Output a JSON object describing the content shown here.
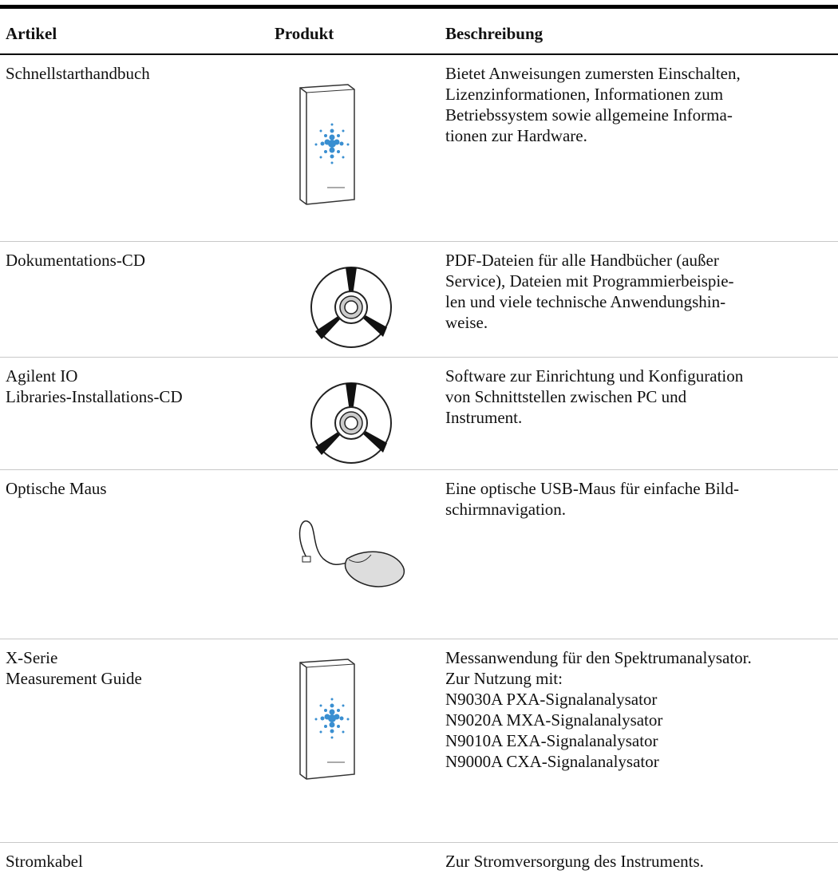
{
  "table": {
    "headers": [
      "Artikel",
      "Produkt",
      "Beschreibung"
    ],
    "rows": [
      {
        "item": [
          "Schnellstarthandbuch"
        ],
        "description": [
          "Bietet Anweisungen zumersten Einschalten,",
          "Lizenzinformationen, Informationen zum",
          "Betriebssystem sowie allgemeine Informa-",
          "tionen zur Hardware."
        ]
      },
      {
        "item": [
          "Dokumentations-CD"
        ],
        "description": [
          "PDF-Dateien für alle Handbücher (außer",
          "Service), Dateien mit Programmierbeispie-",
          "len und viele technische Anwendungshin-",
          "weise."
        ]
      },
      {
        "item": [
          "Agilent IO",
          "Libraries-Installations-CD"
        ],
        "description": [
          "Software zur Einrichtung und Konfiguration",
          "von Schnittstellen zwischen PC und",
          "Instrument."
        ]
      },
      {
        "item": [
          "Optische Maus"
        ],
        "description": [
          "Eine optische USB-Maus für einfache Bild-",
          "schirmnavigation."
        ]
      },
      {
        "item": [
          "X-Serie",
          "Measurement Guide"
        ],
        "description": [
          "Messanwendung für den Spektrumanalysator.",
          "Zur Nutzung mit:",
          "N9030A PXA-Signalanalysator",
          "N9020A MXA-Signalanalysator",
          "N9010A EXA-Signalanalysator",
          "N9000A CXA-Signalanalysator"
        ]
      },
      {
        "item": [
          "Stromkabel"
        ],
        "description": [
          "Zur Stromversorgung des Instruments."
        ]
      }
    ]
  }
}
